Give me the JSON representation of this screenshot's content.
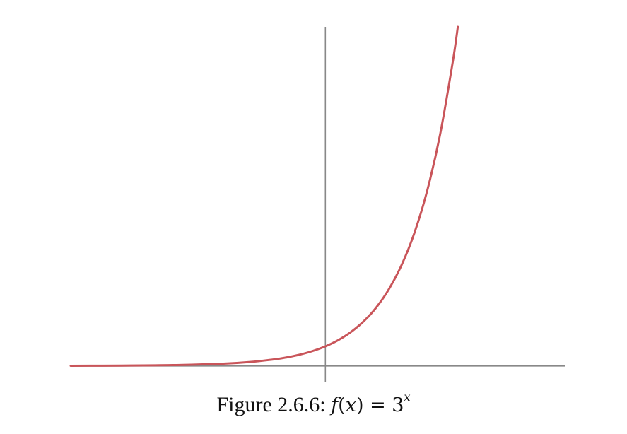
{
  "figure": {
    "label": "Figure 2.6.6:",
    "formula": {
      "fn": "f",
      "open": "(",
      "var": "x",
      "close": ")",
      "eq": " = ",
      "base": "3",
      "exponent": "x"
    }
  },
  "chart_data": {
    "type": "line",
    "title": "",
    "xlabel": "",
    "ylabel": "",
    "function": "3^x",
    "series": [
      {
        "color": "#c9555a",
        "x": [
          -5.0,
          -4.0,
          -3.0,
          -2.0,
          -1.5,
          -1.0,
          -0.75,
          -0.5,
          -0.25,
          0.0,
          0.25,
          0.5,
          0.75,
          1.0,
          1.25,
          1.5,
          1.75,
          2.0,
          2.25,
          2.5,
          2.6
        ],
        "y": [
          0.0041,
          0.0123,
          0.037,
          0.111,
          0.192,
          0.333,
          0.439,
          0.577,
          0.76,
          1.0,
          1.316,
          1.732,
          2.28,
          3.0,
          3.948,
          5.196,
          6.839,
          9.0,
          11.845,
          15.588,
          17.4
        ]
      }
    ],
    "xlim": [
      -5.0,
      4.7
    ],
    "ylim": [
      -0.85,
      17.4
    ],
    "axes_color": "#888888",
    "grid": false,
    "ticks": false
  }
}
